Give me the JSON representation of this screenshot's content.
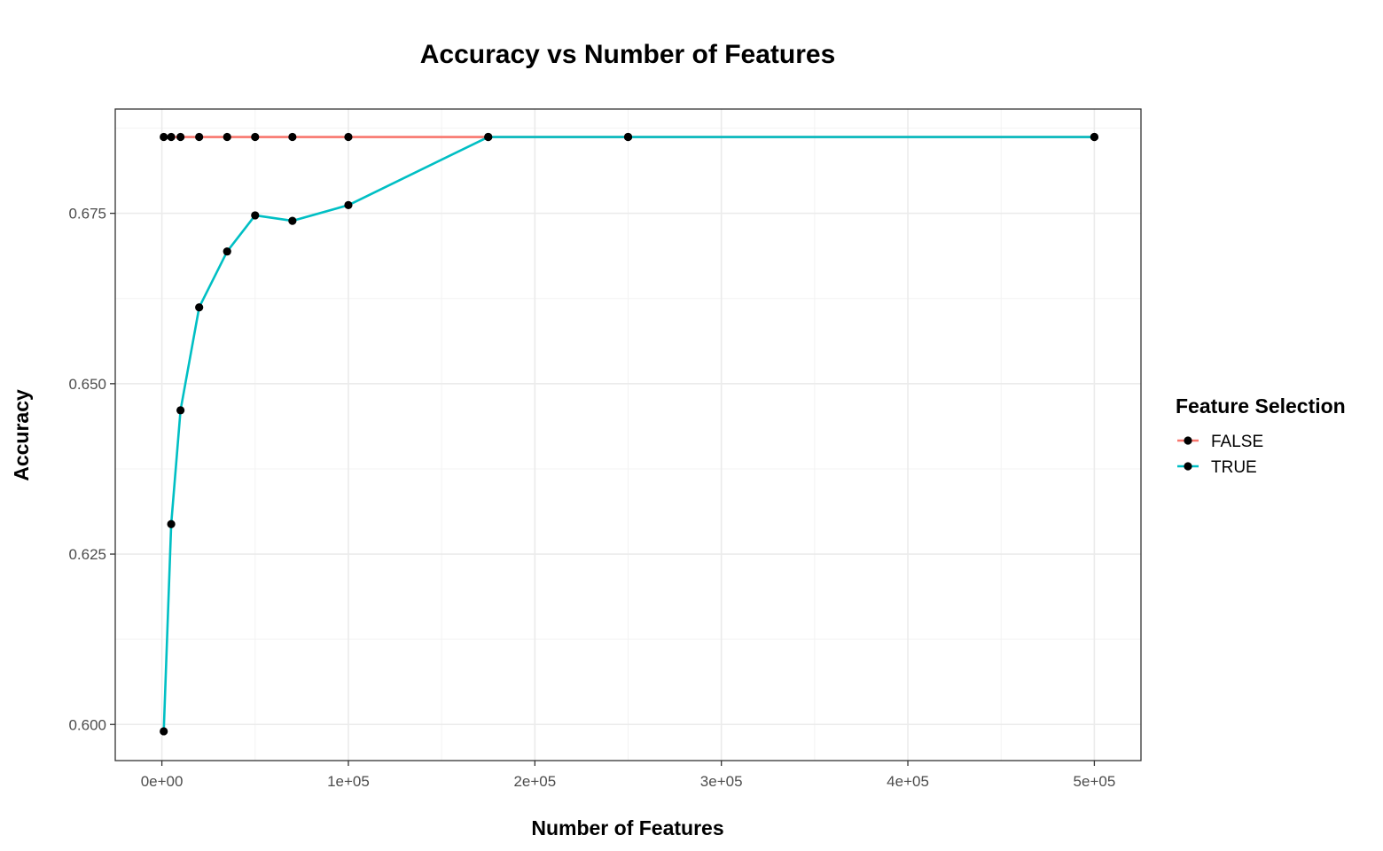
{
  "chart_data": {
    "type": "line",
    "title": "Accuracy vs Number of Features",
    "xlabel": "Number of Features",
    "ylabel": "Accuracy",
    "xlim": [
      -25000,
      525000
    ],
    "ylim": [
      0.5947,
      0.6903
    ],
    "x_ticks": [
      0,
      100000,
      200000,
      300000,
      400000,
      500000
    ],
    "x_tick_labels": [
      "0e+00",
      "1e+05",
      "2e+05",
      "3e+05",
      "4e+05",
      "5e+05"
    ],
    "y_ticks": [
      0.6,
      0.625,
      0.65,
      0.675
    ],
    "y_tick_labels": [
      "0.600",
      "0.625",
      "0.650",
      "0.675"
    ],
    "grid": true,
    "point_color": "#000000",
    "legend": {
      "title": "Feature Selection",
      "position": "right"
    },
    "series": [
      {
        "name": "FALSE",
        "color": "#F8766D",
        "x": [
          1000,
          5000,
          10000,
          20000,
          35000,
          50000,
          70000,
          100000,
          175000,
          250000,
          500000
        ],
        "y": [
          0.6862,
          0.6862,
          0.6862,
          0.6862,
          0.6862,
          0.6862,
          0.6862,
          0.6862,
          0.6862,
          0.6862,
          0.6862
        ]
      },
      {
        "name": "TRUE",
        "color": "#00BFC4",
        "x": [
          1000,
          5000,
          10000,
          20000,
          35000,
          50000,
          70000,
          100000,
          175000,
          250000,
          500000
        ],
        "y": [
          0.599,
          0.6294,
          0.6461,
          0.6612,
          0.6694,
          0.6747,
          0.6739,
          0.6762,
          0.6862,
          0.6862,
          0.6862
        ]
      }
    ]
  }
}
